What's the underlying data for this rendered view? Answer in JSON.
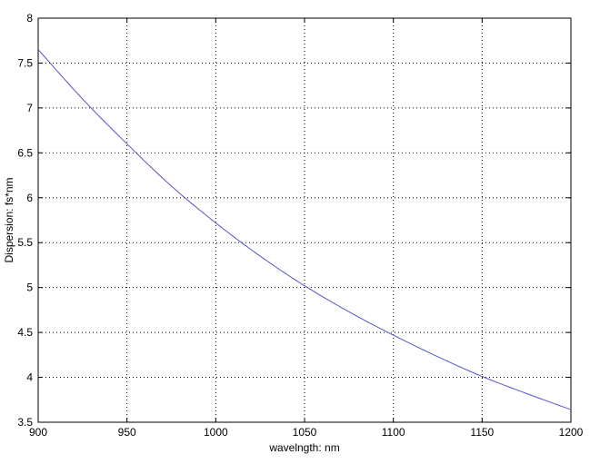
{
  "chart_data": {
    "type": "line",
    "title": "",
    "xlabel": "wavelngth: nm",
    "ylabel": "Dispersion: fs*nm",
    "xlim": [
      900,
      1200
    ],
    "ylim": [
      3.5,
      8
    ],
    "x_ticks": [
      900,
      950,
      1000,
      1050,
      1100,
      1150,
      1200
    ],
    "y_ticks": [
      3.5,
      4,
      4.5,
      5,
      5.5,
      6,
      6.5,
      7,
      7.5,
      8
    ],
    "x_tick_labels": [
      "900",
      "950",
      "1000",
      "1050",
      "1100",
      "1150",
      "1200"
    ],
    "y_tick_labels": [
      "3.5",
      "4",
      "4.5",
      "5",
      "5.5",
      "6",
      "6.5",
      "7",
      "7.5",
      "8"
    ],
    "grid": true,
    "line_color": "#5555cc",
    "series": [
      {
        "x": [
          900,
          925,
          950,
          975,
          1000,
          1025,
          1050,
          1075,
          1100,
          1125,
          1150,
          1175,
          1200
        ],
        "y": [
          7.65,
          7.1,
          6.6,
          6.13,
          5.72,
          5.35,
          5.02,
          4.73,
          4.47,
          4.23,
          4.01,
          3.82,
          3.64
        ]
      }
    ]
  }
}
